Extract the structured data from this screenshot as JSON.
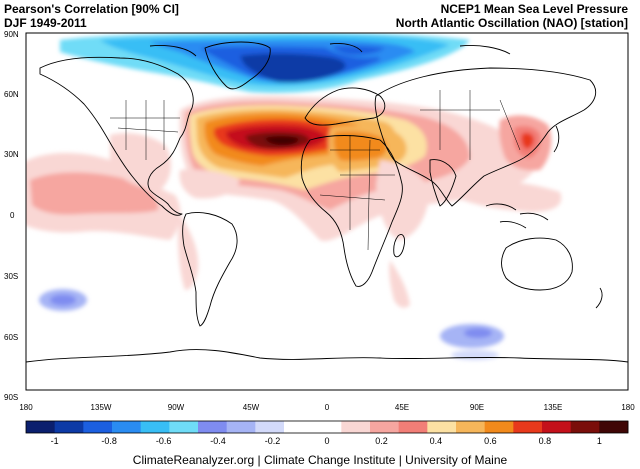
{
  "header": {
    "title_left": "Pearson's Correlation [90% CI]",
    "period": "DJF 1949-2011",
    "dataset": "NCEP1 Mean Sea Level Pressure",
    "index": "North Atlantic Oscillation (NAO) [station]"
  },
  "map": {
    "projection": "equirectangular",
    "lat_labels": [
      "90N",
      "60N",
      "30N",
      "0",
      "30S",
      "60S",
      "90S"
    ],
    "lon_labels": [
      "180",
      "135W",
      "90W",
      "45W",
      "0",
      "45E",
      "90E",
      "135E",
      "180"
    ]
  },
  "colorbar": {
    "colors": [
      "#0b1f6e",
      "#0d3aa6",
      "#1c5fe0",
      "#2a8cf2",
      "#38bef5",
      "#6fdcf7",
      "#7f8cf0",
      "#a6b4f5",
      "#d3dafa",
      "#ffffff",
      "#ffffff",
      "#f9d7d4",
      "#f6a6a0",
      "#f27e77",
      "#fce1a3",
      "#f6b65a",
      "#f28a1c",
      "#e8391c",
      "#c4101a",
      "#7a0e0a",
      "#3f0605"
    ],
    "tick_labels": [
      "-1",
      "-0.8",
      "-0.6",
      "-0.4",
      "-0.2",
      "0",
      "0.2",
      "0.4",
      "0.6",
      "0.8",
      "1"
    ],
    "tick_values": [
      -1,
      -0.8,
      -0.6,
      -0.4,
      -0.2,
      0,
      0.2,
      0.4,
      0.6,
      0.8,
      1
    ]
  },
  "footer": "ClimateReanalyzer.org | Climate Change Institute | University of Maine"
}
